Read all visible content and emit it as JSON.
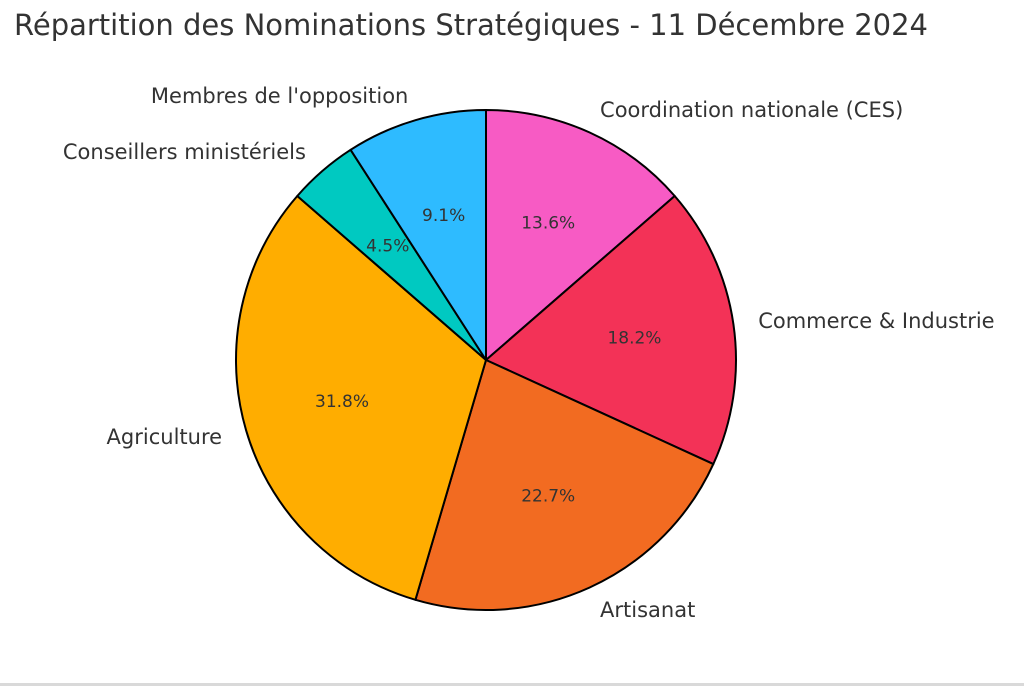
{
  "chart_data": {
    "type": "pie",
    "title": "Répartition des Nominations Stratégiques - 11 Décembre 2024",
    "slices": [
      {
        "label": "Coordination nationale (CES)",
        "value": 13.6,
        "pct_label": "13.6%",
        "color": "#f75bc4"
      },
      {
        "label": "Commerce & Industrie",
        "value": 18.2,
        "pct_label": "18.2%",
        "color": "#f33257"
      },
      {
        "label": "Artisanat",
        "value": 22.7,
        "pct_label": "22.7%",
        "color": "#f26b21"
      },
      {
        "label": "Agriculture",
        "value": 31.8,
        "pct_label": "31.8%",
        "color": "#ffad00"
      },
      {
        "label": "Conseillers ministériels",
        "value": 4.5,
        "pct_label": "4.5%",
        "color": "#00c9c1"
      },
      {
        "label": "Membres de l'opposition",
        "value": 9.1,
        "pct_label": "9.1%",
        "color": "#2ebbff"
      }
    ],
    "start_angle_deg": 90,
    "direction": "clockwise",
    "edge_color": "#000000",
    "legend": "none"
  }
}
